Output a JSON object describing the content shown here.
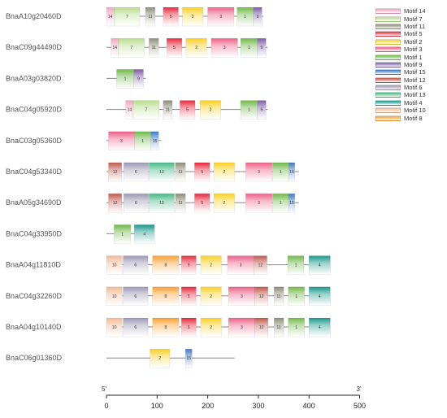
{
  "axis": {
    "start_label": "5'",
    "end_label": "3'",
    "ticks": [
      0,
      100,
      200,
      300,
      400,
      500
    ],
    "range": [
      0,
      500
    ]
  },
  "legend": [
    {
      "label": "Motif 14",
      "motif": "14",
      "color": "#f4a3c0"
    },
    {
      "label": "Motif 7",
      "motif": "7",
      "color": "#b8dc8c"
    },
    {
      "label": "Motif 11",
      "motif": "11",
      "color": "#8c8c78"
    },
    {
      "label": "Motif 5",
      "motif": "5",
      "color": "#e8283c"
    },
    {
      "label": "Motif 2",
      "motif": "2",
      "color": "#f8d020"
    },
    {
      "label": "Motif 3",
      "motif": "3",
      "color": "#ec6088"
    },
    {
      "label": "Motif 1",
      "motif": "1",
      "color": "#70b848"
    },
    {
      "label": "Motif 9",
      "motif": "9",
      "color": "#7c5ca8"
    },
    {
      "label": "Motif 15",
      "motif": "15",
      "color": "#3c78c8"
    },
    {
      "label": "Motif 12",
      "motif": "12",
      "color": "#c0584c"
    },
    {
      "label": "Motif 6",
      "motif": "6",
      "color": "#9c98b4"
    },
    {
      "label": "Motif 13",
      "motif": "13",
      "color": "#44b884"
    },
    {
      "label": "Motif 4",
      "motif": "4",
      "color": "#18988c"
    },
    {
      "label": "Motif 10",
      "motif": "10",
      "color": "#f4b894"
    },
    {
      "label": "Motif 8",
      "motif": "8",
      "color": "#f8a030"
    }
  ],
  "genes": [
    {
      "name": "BnaA10g20460D",
      "length": 310,
      "motifs": [
        {
          "id": "14",
          "start": 0,
          "end": 15
        },
        {
          "id": "7",
          "start": 15,
          "end": 66
        },
        {
          "id": "11",
          "start": 77,
          "end": 96
        },
        {
          "id": "5",
          "start": 112,
          "end": 142
        },
        {
          "id": "2",
          "start": 150,
          "end": 191
        },
        {
          "id": "3",
          "start": 200,
          "end": 252
        },
        {
          "id": "1",
          "start": 258,
          "end": 290
        },
        {
          "id": "9",
          "start": 290,
          "end": 307
        }
      ]
    },
    {
      "name": "BnaC09g44490D",
      "length": 318,
      "motifs": [
        {
          "id": "14",
          "start": 9,
          "end": 24
        },
        {
          "id": "7",
          "start": 24,
          "end": 75
        },
        {
          "id": "11",
          "start": 84,
          "end": 103
        },
        {
          "id": "5",
          "start": 119,
          "end": 149
        },
        {
          "id": "2",
          "start": 157,
          "end": 198
        },
        {
          "id": "3",
          "start": 207,
          "end": 259
        },
        {
          "id": "1",
          "start": 265,
          "end": 298
        },
        {
          "id": "9",
          "start": 298,
          "end": 315
        }
      ]
    },
    {
      "name": "BnaA03g03820D",
      "length": 78,
      "motifs": [
        {
          "id": "1",
          "start": 20,
          "end": 54
        },
        {
          "id": "9",
          "start": 54,
          "end": 73
        }
      ]
    },
    {
      "name": "BnaC04g05920D",
      "length": 318,
      "motifs": [
        {
          "id": "14",
          "start": 38,
          "end": 53
        },
        {
          "id": "7",
          "start": 53,
          "end": 104
        },
        {
          "id": "11",
          "start": 112,
          "end": 130
        },
        {
          "id": "5",
          "start": 145,
          "end": 175
        },
        {
          "id": "2",
          "start": 185,
          "end": 226
        },
        {
          "id": "1",
          "start": 265,
          "end": 298
        },
        {
          "id": "9",
          "start": 298,
          "end": 315
        }
      ]
    },
    {
      "name": "BnaC03g05360D",
      "length": 108,
      "motifs": [
        {
          "id": "3",
          "start": 4,
          "end": 55
        },
        {
          "id": "1",
          "start": 55,
          "end": 88
        },
        {
          "id": "15",
          "start": 88,
          "end": 103
        }
      ]
    },
    {
      "name": "BnaC04g53340D",
      "length": 380,
      "motifs": [
        {
          "id": "12",
          "start": 4,
          "end": 30
        },
        {
          "id": "6",
          "start": 34,
          "end": 83
        },
        {
          "id": "13",
          "start": 84,
          "end": 134
        },
        {
          "id": "11",
          "start": 136,
          "end": 156
        },
        {
          "id": "5",
          "start": 174,
          "end": 204
        },
        {
          "id": "2",
          "start": 212,
          "end": 253
        },
        {
          "id": "3",
          "start": 275,
          "end": 327
        },
        {
          "id": "1",
          "start": 328,
          "end": 360
        },
        {
          "id": "15",
          "start": 360,
          "end": 372
        }
      ]
    },
    {
      "name": "BnaA05g34690D",
      "length": 380,
      "motifs": [
        {
          "id": "12",
          "start": 4,
          "end": 30
        },
        {
          "id": "6",
          "start": 34,
          "end": 83
        },
        {
          "id": "13",
          "start": 84,
          "end": 134
        },
        {
          "id": "11",
          "start": 136,
          "end": 156
        },
        {
          "id": "5",
          "start": 174,
          "end": 204
        },
        {
          "id": "2",
          "start": 212,
          "end": 253
        },
        {
          "id": "3",
          "start": 275,
          "end": 327
        },
        {
          "id": "1",
          "start": 328,
          "end": 360
        },
        {
          "id": "15",
          "start": 360,
          "end": 372
        }
      ]
    },
    {
      "name": "BnaC04g33950D",
      "length": 95,
      "motifs": [
        {
          "id": "1",
          "start": 15,
          "end": 48
        },
        {
          "id": "4",
          "start": 55,
          "end": 95
        }
      ]
    },
    {
      "name": "BnaA04g11810D",
      "length": 442,
      "motifs": [
        {
          "id": "10",
          "start": 0,
          "end": 31
        },
        {
          "id": "6",
          "start": 33,
          "end": 82
        },
        {
          "id": "8",
          "start": 91,
          "end": 143
        },
        {
          "id": "5",
          "start": 148,
          "end": 177
        },
        {
          "id": "2",
          "start": 186,
          "end": 227
        },
        {
          "id": "3",
          "start": 239,
          "end": 291
        },
        {
          "id": "12",
          "start": 291,
          "end": 317
        },
        {
          "id": "1",
          "start": 358,
          "end": 390
        },
        {
          "id": "4",
          "start": 400,
          "end": 442
        }
      ]
    },
    {
      "name": "BnaC04g32260D",
      "length": 442,
      "motifs": [
        {
          "id": "10",
          "start": 0,
          "end": 31
        },
        {
          "id": "6",
          "start": 33,
          "end": 82
        },
        {
          "id": "8",
          "start": 91,
          "end": 143
        },
        {
          "id": "5",
          "start": 148,
          "end": 177
        },
        {
          "id": "2",
          "start": 186,
          "end": 227
        },
        {
          "id": "3",
          "start": 241,
          "end": 293
        },
        {
          "id": "12",
          "start": 293,
          "end": 319
        },
        {
          "id": "11",
          "start": 331,
          "end": 350
        },
        {
          "id": "1",
          "start": 359,
          "end": 391
        },
        {
          "id": "4",
          "start": 400,
          "end": 442
        }
      ]
    },
    {
      "name": "BnaA04g10140D",
      "length": 442,
      "motifs": [
        {
          "id": "10",
          "start": 0,
          "end": 31
        },
        {
          "id": "6",
          "start": 33,
          "end": 82
        },
        {
          "id": "8",
          "start": 91,
          "end": 143
        },
        {
          "id": "5",
          "start": 148,
          "end": 177
        },
        {
          "id": "2",
          "start": 186,
          "end": 227
        },
        {
          "id": "3",
          "start": 241,
          "end": 293
        },
        {
          "id": "12",
          "start": 293,
          "end": 319
        },
        {
          "id": "11",
          "start": 331,
          "end": 350
        },
        {
          "id": "1",
          "start": 359,
          "end": 391
        },
        {
          "id": "4",
          "start": 400,
          "end": 442
        }
      ]
    },
    {
      "name": "BnaC06g01360D",
      "length": 253,
      "motifs": [
        {
          "id": "2",
          "start": 86,
          "end": 125
        },
        {
          "id": "15",
          "start": 156,
          "end": 169
        }
      ]
    }
  ]
}
